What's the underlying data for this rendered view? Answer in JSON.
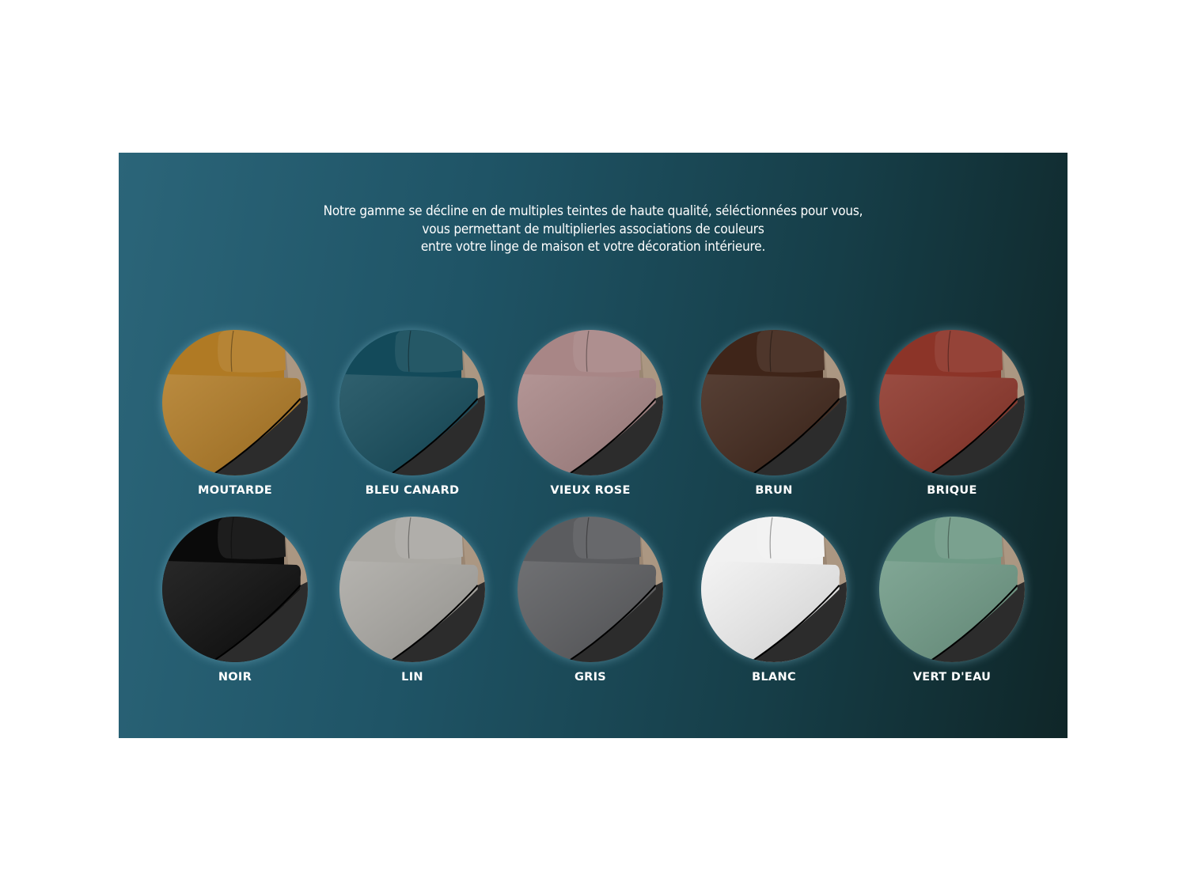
{
  "intro": {
    "lines": [
      "Notre gamme se décline en de multiples teintes de haute qualité, séléctionnées pour vous,",
      "vous permettant de multiplierles associations de couleurs",
      "entre votre linge de maison et votre décoration intérieure."
    ]
  },
  "swatches": [
    {
      "label": "MOUTARDE",
      "color": "#b07a24"
    },
    {
      "label": "BLEU CANARD",
      "color": "#134a5a"
    },
    {
      "label": "VIEUX ROSE",
      "color": "#a88686"
    },
    {
      "label": "BRUN",
      "color": "#3f2519"
    },
    {
      "label": "BRIQUE",
      "color": "#8c3428"
    },
    {
      "label": "NOIR",
      "color": "#0a0a0a"
    },
    {
      "label": "LIN",
      "color": "#aaa8a3"
    },
    {
      "label": "GRIS",
      "color": "#5b5c5f"
    },
    {
      "label": "BLANC",
      "color": "#f1f1f1"
    },
    {
      "label": "VERT D'EAU",
      "color": "#6f9a86"
    }
  ]
}
